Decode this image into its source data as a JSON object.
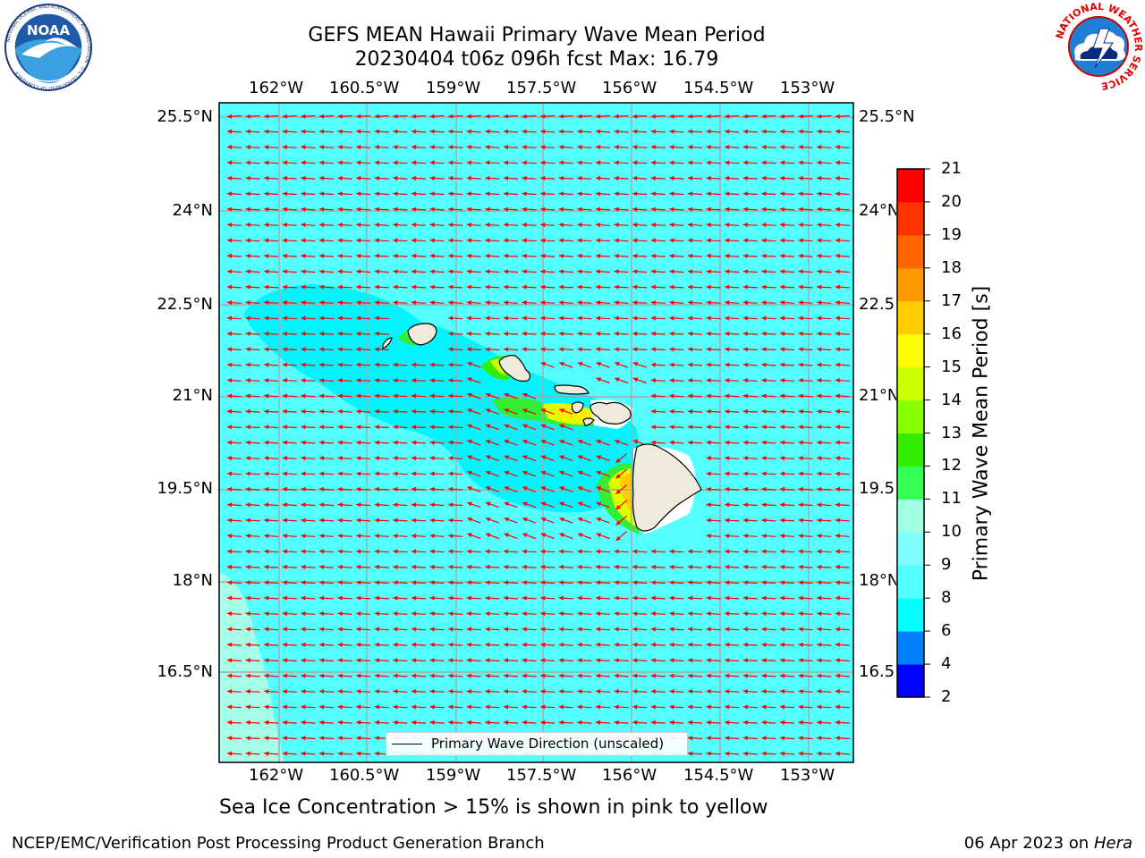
{
  "header": {
    "title_line1": "GEFS MEAN Hawaii Primary Wave Mean Period",
    "title_line2": "20230404 t06z 096h fcst   Max: 16.79"
  },
  "logos": {
    "left": {
      "icon": "noaa-logo-icon",
      "text": "NOAA",
      "ring_text": "NATIONAL OCEANIC AND ATMOSPHERIC ADMINISTRATION · U.S. DEPARTMENT OF COMMERCE"
    },
    "right": {
      "icon": "nws-logo-icon",
      "ring_text": "NATIONAL WEATHER SERVICE"
    }
  },
  "map": {
    "longitude_ticks": [
      "162°W",
      "160.5°W",
      "159°W",
      "157.5°W",
      "156°W",
      "154.5°W",
      "153°W"
    ],
    "latitude_ticks": [
      "25.5°N",
      "24°N",
      "22.5°N",
      "21°N",
      "19.5°N",
      "18°N",
      "16.5°N"
    ],
    "grid": true,
    "ocean_color": "#55ffff",
    "land_color": "#efebdc",
    "arrow_color": "#ff0000",
    "legend": {
      "label": "Primary Wave Direction (unscaled)",
      "placement": "bottom-center"
    }
  },
  "colorbar": {
    "label": "Primary Wave Mean Period [s]",
    "ticks": [
      "21",
      "20",
      "19",
      "18",
      "17",
      "16",
      "15",
      "14",
      "13",
      "12",
      "11",
      "10",
      "9",
      "8",
      "6",
      "4",
      "2"
    ],
    "levels": [
      2,
      4,
      6,
      8,
      9,
      10,
      11,
      12,
      13,
      14,
      15,
      16,
      17,
      18,
      19,
      20,
      21
    ],
    "colors": [
      "#0000ff",
      "#0080ff",
      "#00ffff",
      "#55ffff",
      "#80ffff",
      "#a0ffe0",
      "#33ff55",
      "#33ee00",
      "#88ff00",
      "#ccff00",
      "#ffff00",
      "#ffcc00",
      "#ff9900",
      "#ff6600",
      "#ff3300",
      "#ff0000"
    ]
  },
  "subtitle": "Sea Ice Concentration > 15% is shown in pink to yellow",
  "footer": {
    "left": "NCEP/EMC/Verification Post Processing Product Generation Branch",
    "right_prefix": "06 Apr 2023 on ",
    "right_machine": "Hera"
  }
}
